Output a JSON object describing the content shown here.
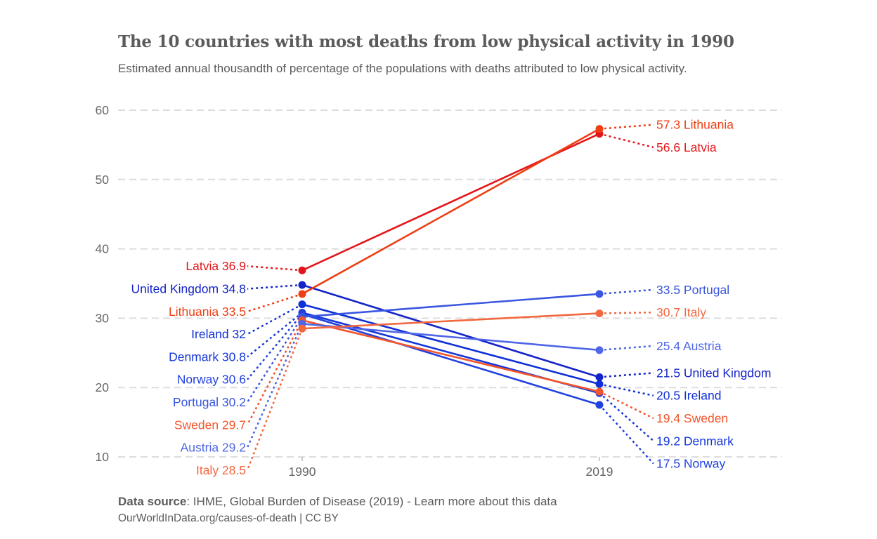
{
  "header": {
    "title": "The 10 countries with most deaths from low physical activity in 1990",
    "subtitle": "Estimated annual thousandth of percentage of the populations with deaths attributed to low physical activity."
  },
  "footer": {
    "source_label": "Data source",
    "source_text": ": IHME, Global Burden of Disease (2019) - Learn more about this data",
    "attribution": "OurWorldInData.org/causes-of-death | CC BY"
  },
  "chart_data": {
    "type": "line",
    "subtype": "slope",
    "title": "The 10 countries with most deaths from low physical activity in 1990",
    "subtitle": "Estimated annual thousandth of percentage of the populations with deaths attributed to low physical activity.",
    "x": [
      1990,
      2019
    ],
    "xlabel": "",
    "ylabel": "",
    "ylim": [
      10,
      60
    ],
    "yticks": [
      10,
      20,
      30,
      40,
      50,
      60
    ],
    "grid": "horizontal dashed",
    "legend": "none (direct labels at both ends)",
    "series": [
      {
        "name": "Latvia",
        "values": [
          36.9,
          56.6
        ],
        "color": "#e2161a"
      },
      {
        "name": "United Kingdom",
        "values": [
          34.8,
          21.5
        ],
        "color": "#1524c8"
      },
      {
        "name": "Lithuania",
        "values": [
          33.5,
          57.3
        ],
        "color": "#ee3f14"
      },
      {
        "name": "Ireland",
        "values": [
          32.0,
          20.5
        ],
        "color": "#0f2fd6"
      },
      {
        "name": "Denmark",
        "values": [
          30.8,
          19.2
        ],
        "color": "#1537d9"
      },
      {
        "name": "Norway",
        "values": [
          30.6,
          17.5
        ],
        "color": "#2141e0"
      },
      {
        "name": "Portugal",
        "values": [
          30.2,
          33.5
        ],
        "color": "#3b56e0"
      },
      {
        "name": "Sweden",
        "values": [
          29.7,
          19.4
        ],
        "color": "#f2552b"
      },
      {
        "name": "Austria",
        "values": [
          29.2,
          25.4
        ],
        "color": "#4f66e6"
      },
      {
        "name": "Italy",
        "values": [
          28.5,
          30.7
        ],
        "color": "#f2683f"
      }
    ]
  }
}
